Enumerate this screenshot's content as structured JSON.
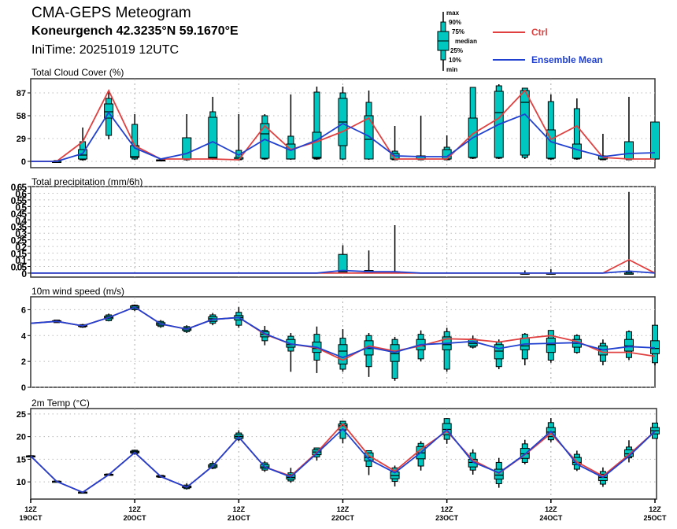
{
  "header": {
    "title": "CMA-GEPS Meteogram",
    "station": "Koneurgench 42.3235°N 59.1670°E",
    "init_time": "IniTime: 20251019 12UTC"
  },
  "legend": {
    "box_labels": [
      "max",
      "90%",
      "75%",
      "median",
      "25%",
      "10%",
      "min"
    ],
    "ctrl_label": "Ctrl",
    "mean_label": "Ensemble Mean",
    "ctrl_color": "#e04040",
    "mean_color": "#2040d0",
    "box_color": "#00c8c0"
  },
  "chart_data": [
    {
      "type": "boxplot-line",
      "id": "cloud",
      "title": "Total Cloud Cover (%)",
      "ylim": [
        -8,
        105
      ],
      "yticks": [
        0,
        29,
        58,
        87
      ],
      "ytick_labels": [
        "0",
        "29",
        "58",
        "87"
      ],
      "grid": true,
      "ctrl": [
        0,
        0,
        25,
        90,
        20,
        3,
        3,
        3,
        2,
        45,
        15,
        25,
        38,
        55,
        3,
        3,
        3,
        35,
        55,
        90,
        28,
        45,
        5,
        3,
        3
      ],
      "mean": [
        0,
        0,
        10,
        62,
        17,
        3,
        10,
        25,
        8,
        28,
        14,
        27,
        48,
        32,
        7,
        6,
        6,
        30,
        47,
        60,
        25,
        15,
        6,
        10,
        11
      ],
      "boxes": [
        null,
        [
          0,
          0,
          0,
          0,
          0,
          1,
          1
        ],
        [
          1,
          2,
          3,
          8,
          15,
          25,
          43
        ],
        [
          28,
          33,
          55,
          63,
          73,
          80,
          90
        ],
        [
          2,
          3,
          5,
          6,
          20,
          47,
          60
        ],
        [
          1,
          1,
          1,
          1,
          2,
          2,
          2
        ],
        [
          1,
          2,
          3,
          3,
          30,
          30,
          60
        ],
        [
          2,
          3,
          4,
          5,
          56,
          63,
          82
        ],
        [
          1,
          2,
          3,
          3,
          5,
          14,
          60
        ],
        [
          2,
          3,
          4,
          35,
          48,
          58,
          60
        ],
        [
          2,
          3,
          3,
          3,
          22,
          32,
          85
        ],
        [
          2,
          3,
          4,
          5,
          37,
          88,
          95
        ],
        [
          2,
          3,
          20,
          50,
          80,
          87,
          95
        ],
        [
          2,
          3,
          3,
          28,
          58,
          75,
          90
        ],
        [
          2,
          2,
          3,
          3,
          10,
          13,
          45
        ],
        [
          2,
          2,
          3,
          3,
          7,
          7,
          58
        ],
        [
          2,
          2,
          3,
          3,
          15,
          18,
          33
        ],
        [
          3,
          4,
          5,
          5,
          55,
          94,
          94
        ],
        [
          3,
          4,
          5,
          62,
          89,
          96,
          98
        ],
        [
          3,
          5,
          8,
          75,
          90,
          93,
          93
        ],
        [
          2,
          3,
          4,
          4,
          40,
          76,
          85
        ],
        [
          2,
          3,
          4,
          4,
          22,
          67,
          80
        ],
        [
          2,
          2,
          3,
          3,
          7,
          7,
          35
        ],
        [
          2,
          2,
          3,
          3,
          25,
          25,
          82
        ],
        [
          2,
          3,
          3,
          3,
          50,
          50,
          50
        ]
      ]
    },
    {
      "type": "boxplot-line",
      "id": "precip",
      "title": "Total precipitation (mm/6h)",
      "ylim": [
        -0.03,
        0.65
      ],
      "yticks": [
        0,
        0.05,
        0.1,
        0.15,
        0.2,
        0.25,
        0.3,
        0.35,
        0.4,
        0.45,
        0.5,
        0.55,
        0.6,
        0.65
      ],
      "ytick_labels": [
        "0",
        "0.05",
        "0.1",
        "0.15",
        "0.2",
        "0.25",
        "0.3",
        "0.35",
        "0.4",
        "0.45",
        "0.5",
        "0.55",
        "0.6",
        "0.65"
      ],
      "grid": true,
      "ctrl": [
        0,
        0,
        0,
        0,
        0,
        0,
        0,
        0,
        0,
        0,
        0,
        0,
        0,
        0,
        0,
        0,
        0,
        0,
        0,
        0,
        0,
        0,
        0,
        0.1,
        0
      ],
      "mean": [
        0,
        0,
        0,
        0,
        0,
        0,
        0,
        0,
        0,
        0,
        0,
        0,
        0.02,
        0.01,
        0.01,
        0,
        0,
        0,
        0,
        0,
        0,
        0,
        0,
        0.015,
        0
      ],
      "boxes": [
        null,
        null,
        null,
        null,
        null,
        null,
        null,
        null,
        null,
        null,
        null,
        null,
        [
          0,
          0,
          0,
          0.01,
          0.14,
          0.14,
          0.21
        ],
        [
          0,
          0,
          0,
          0,
          0.02,
          0.02,
          0.17
        ],
        [
          0,
          0,
          0,
          0,
          0.01,
          0.01,
          0.36
        ],
        null,
        null,
        null,
        null,
        [
          0,
          0,
          0,
          0,
          0,
          0,
          0.02
        ],
        [
          0,
          0,
          0,
          0,
          0,
          0,
          0.03
        ],
        null,
        null,
        [
          0,
          0,
          0,
          0,
          0,
          0.01,
          0.61
        ],
        null
      ]
    },
    {
      "type": "boxplot-line",
      "id": "wind",
      "title": "10m wind speed (m/s)",
      "ylim": [
        0,
        7
      ],
      "yticks": [
        0,
        2,
        4,
        6
      ],
      "ytick_labels": [
        "0",
        "2",
        "4",
        "6"
      ],
      "grid": true,
      "ctrl": [
        4.95,
        5.1,
        4.75,
        5.4,
        6.2,
        4.9,
        4.5,
        5.25,
        5.4,
        4.1,
        3.35,
        3.05,
        2.1,
        3.2,
        2.8,
        3.2,
        3.75,
        3.7,
        3.5,
        3.8,
        4.0,
        3.55,
        2.7,
        2.7,
        2.4
      ],
      "mean": [
        4.95,
        5.1,
        4.75,
        5.4,
        6.2,
        4.9,
        4.5,
        5.25,
        5.4,
        4.15,
        3.35,
        3.1,
        2.3,
        3.1,
        2.7,
        3.3,
        3.4,
        3.55,
        3.0,
        3.35,
        3.4,
        3.45,
        2.9,
        3.15,
        3.05
      ],
      "boxes": [
        null,
        [
          5.0,
          5.0,
          5.05,
          5.1,
          5.15,
          5.2,
          5.2
        ],
        [
          4.6,
          4.65,
          4.7,
          4.75,
          4.8,
          4.85,
          4.9
        ],
        [
          5.1,
          5.15,
          5.3,
          5.4,
          5.5,
          5.6,
          5.7
        ],
        [
          5.9,
          6.0,
          6.1,
          6.2,
          6.3,
          6.35,
          6.4
        ],
        [
          4.6,
          4.7,
          4.8,
          4.9,
          5.0,
          5.1,
          5.2
        ],
        [
          4.2,
          4.3,
          4.4,
          4.5,
          4.6,
          4.7,
          4.8
        ],
        [
          4.8,
          4.95,
          5.1,
          5.3,
          5.45,
          5.6,
          5.75
        ],
        [
          4.6,
          4.8,
          5.2,
          5.4,
          5.55,
          5.8,
          6.2
        ],
        [
          3.25,
          3.6,
          3.9,
          4.1,
          4.3,
          4.4,
          4.75
        ],
        [
          1.2,
          2.8,
          3.1,
          3.3,
          3.7,
          3.95,
          4.2
        ],
        [
          1.1,
          2.1,
          2.7,
          3.0,
          3.5,
          4.1,
          4.7
        ],
        [
          1.2,
          1.4,
          1.8,
          2.8,
          3.3,
          3.8,
          4.5
        ],
        [
          0.8,
          1.6,
          2.5,
          3.0,
          3.6,
          4.0,
          4.2
        ],
        [
          0.5,
          0.7,
          2.0,
          2.6,
          3.3,
          3.7,
          3.9
        ],
        [
          2.0,
          2.2,
          2.9,
          3.2,
          3.7,
          4.1,
          4.4
        ],
        [
          1.2,
          1.4,
          2.9,
          3.3,
          3.9,
          4.3,
          4.6
        ],
        [
          3.0,
          3.1,
          3.2,
          3.4,
          3.7,
          3.75,
          4.0
        ],
        [
          1.4,
          1.6,
          2.2,
          2.8,
          3.3,
          3.5,
          3.7
        ],
        [
          1.7,
          2.2,
          2.9,
          3.2,
          3.8,
          4.1,
          4.2
        ],
        [
          1.9,
          2.1,
          2.7,
          3.3,
          3.8,
          4.4,
          4.4
        ],
        [
          2.6,
          2.7,
          3.1,
          3.4,
          3.7,
          4.0,
          4.1
        ],
        [
          1.7,
          2.0,
          2.5,
          2.9,
          3.2,
          3.4,
          3.7
        ],
        [
          2.1,
          2.3,
          2.8,
          3.2,
          3.7,
          4.3,
          4.4
        ],
        [
          1.7,
          1.9,
          2.6,
          3.0,
          3.6,
          4.8,
          4.8
        ]
      ]
    },
    {
      "type": "boxplot-line",
      "id": "temp",
      "title": "2m Temp (°C)",
      "ylim": [
        6.2,
        26.2
      ],
      "yticks": [
        10,
        15,
        20,
        25
      ],
      "ytick_labels": [
        "10",
        "15",
        "20",
        "25"
      ],
      "grid": true,
      "ctrl": [
        15.7,
        10.1,
        7.7,
        11.6,
        16.5,
        11.2,
        8.8,
        13.5,
        19.9,
        13.3,
        11.3,
        16.5,
        22.8,
        15.8,
        12.4,
        17.2,
        21.2,
        14.8,
        11.9,
        16.0,
        20.7,
        14.4,
        11.3,
        16.0,
        21.2
      ],
      "mean": [
        15.7,
        10.1,
        7.7,
        11.6,
        16.5,
        11.2,
        8.8,
        13.5,
        19.9,
        13.3,
        11.1,
        16.3,
        21.7,
        15.0,
        12.0,
        16.5,
        21.5,
        14.4,
        12.0,
        16.1,
        21.2,
        13.9,
        11.0,
        15.7,
        21.2
      ],
      "boxes": [
        [
          15.6,
          15.6,
          15.65,
          15.7,
          15.75,
          15.8,
          15.8
        ],
        [
          10.0,
          10.0,
          10.05,
          10.1,
          10.15,
          10.2,
          10.2
        ],
        [
          7.6,
          7.6,
          7.65,
          7.7,
          7.75,
          7.8,
          7.8
        ],
        [
          11.4,
          11.45,
          11.5,
          11.6,
          11.7,
          11.75,
          11.8
        ],
        [
          16.0,
          16.2,
          16.4,
          16.6,
          16.8,
          17.0,
          17.1
        ],
        [
          10.9,
          11.0,
          11.1,
          11.2,
          11.35,
          11.45,
          11.5
        ],
        [
          8.3,
          8.5,
          8.7,
          8.9,
          9.1,
          9.3,
          9.7
        ],
        [
          12.8,
          13.0,
          13.2,
          13.5,
          13.8,
          14.1,
          14.6
        ],
        [
          19.0,
          19.3,
          19.6,
          20.0,
          20.4,
          20.8,
          21.4
        ],
        [
          12.2,
          12.6,
          13.0,
          13.3,
          13.8,
          14.2,
          14.6
        ],
        [
          9.8,
          10.2,
          10.6,
          11.0,
          11.6,
          12.0,
          13.1
        ],
        [
          14.7,
          15.5,
          16.0,
          16.6,
          17.1,
          17.5,
          17.5
        ],
        [
          18.5,
          19.6,
          21.5,
          22.4,
          22.8,
          23.4,
          23.5
        ],
        [
          11.5,
          13.4,
          14.6,
          15.4,
          16.4,
          16.9,
          16.9
        ],
        [
          9.0,
          10.1,
          10.7,
          11.4,
          12.2,
          13.1,
          13.6
        ],
        [
          12.5,
          13.5,
          15.1,
          16.4,
          17.8,
          18.5,
          19.0
        ],
        [
          18.4,
          19.4,
          20.4,
          21.6,
          22.9,
          24.0,
          24.1
        ],
        [
          11.6,
          12.6,
          13.3,
          14.3,
          15.0,
          16.4,
          17.2
        ],
        [
          8.7,
          9.6,
          10.6,
          11.5,
          12.8,
          14.3,
          15.3
        ],
        [
          13.9,
          14.3,
          15.2,
          16.2,
          17.4,
          18.4,
          19.3
        ],
        [
          18.8,
          19.3,
          20.0,
          21.0,
          22.0,
          23.1,
          24.1
        ],
        [
          12.4,
          12.8,
          13.8,
          14.3,
          15.4,
          16.1,
          16.9
        ],
        [
          8.9,
          9.5,
          10.3,
          11.0,
          11.7,
          12.3,
          13.2
        ],
        [
          14.3,
          15.3,
          15.6,
          16.2,
          17.1,
          17.7,
          19.2
        ],
        [
          19.5,
          19.6,
          20.6,
          21.3,
          22.0,
          23.0,
          23.0
        ]
      ]
    }
  ],
  "xaxis": {
    "n_steps": 24,
    "major_every": 4,
    "labels_top": [
      "12Z",
      "12Z",
      "12Z",
      "12Z",
      "12Z",
      "12Z",
      "12Z"
    ],
    "labels_bottom": [
      "19OCT",
      "20OCT",
      "21OCT",
      "22OCT",
      "23OCT",
      "24OCT",
      "25OCT"
    ]
  }
}
